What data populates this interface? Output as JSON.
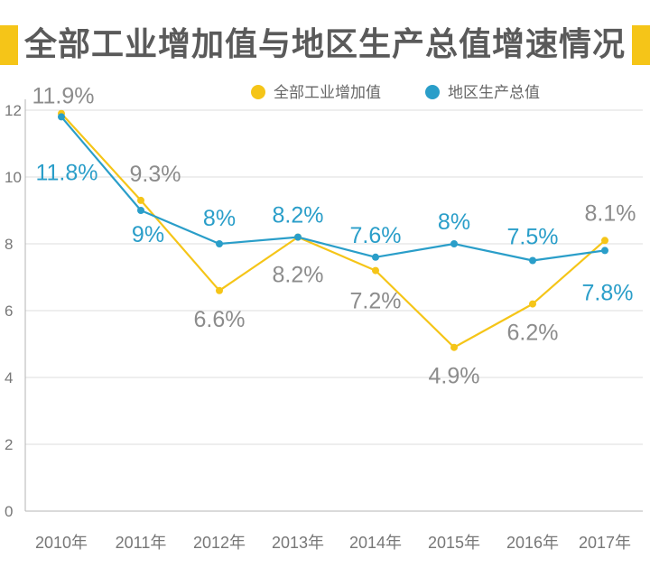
{
  "chart_data": {
    "type": "line",
    "title": "全部工业增加值与地区生产总值增速情况",
    "categories": [
      "2010年",
      "2011年",
      "2012年",
      "2013年",
      "2014年",
      "2015年",
      "2016年",
      "2017年"
    ],
    "ylim": [
      0,
      12
    ],
    "yticks": [
      "0",
      "2",
      "4",
      "6",
      "8",
      "10",
      "12"
    ],
    "grid": true,
    "legend": "top-right",
    "series": [
      {
        "name": "全部工业增加值",
        "color": "#F5C518",
        "values": [
          11.9,
          9.3,
          6.6,
          8.2,
          7.2,
          4.9,
          6.2,
          8.1
        ],
        "labels": [
          "11.9%",
          "9.3%",
          "6.6%",
          "8.2%",
          "7.2%",
          "4.9%",
          "6.2%",
          "8.1%"
        ]
      },
      {
        "name": "地区生产总值",
        "color": "#2A9EC9",
        "values": [
          11.8,
          9,
          8,
          8.2,
          7.6,
          8,
          7.5,
          7.8
        ],
        "labels": [
          "11.8%",
          "9%",
          "8%",
          "8.2%",
          "7.6%",
          "8%",
          "7.5%",
          "7.8%"
        ]
      }
    ]
  }
}
